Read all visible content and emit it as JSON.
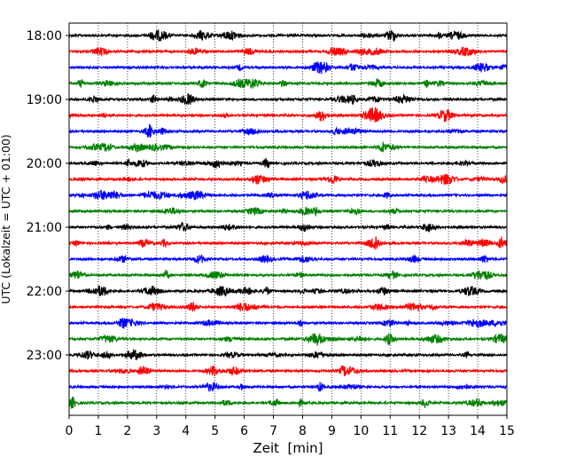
{
  "chart_data": {
    "type": "line",
    "title": "",
    "xlabel": "Zeit  [min]",
    "ylabel": "UTC (Lokalzeit = UTC + 01:00)",
    "xlim": [
      0,
      15
    ],
    "x_ticks": [
      0,
      1,
      2,
      3,
      4,
      5,
      6,
      7,
      8,
      9,
      10,
      11,
      12,
      13,
      14,
      15
    ],
    "x_tick_labels": [
      "0",
      "1",
      "2",
      "3",
      "4",
      "5",
      "6",
      "7",
      "8",
      "9",
      "10",
      "11",
      "12",
      "13",
      "14",
      "15"
    ],
    "y_tick_labels": [
      "18:00",
      "19:00",
      "20:00",
      "21:00",
      "22:00",
      "23:00"
    ],
    "y_tick_rows": [
      0,
      4,
      8,
      12,
      16,
      20
    ],
    "grid": "vertical-dotted",
    "trace_colors": [
      "#000000",
      "#ff0000",
      "#0000ff",
      "#008000"
    ],
    "traces": [
      {
        "start": "18:00",
        "color": "#000000"
      },
      {
        "start": "18:15",
        "color": "#ff0000"
      },
      {
        "start": "18:30",
        "color": "#0000ff"
      },
      {
        "start": "18:45",
        "color": "#008000"
      },
      {
        "start": "19:00",
        "color": "#000000"
      },
      {
        "start": "19:15",
        "color": "#ff0000"
      },
      {
        "start": "19:30",
        "color": "#0000ff"
      },
      {
        "start": "19:45",
        "color": "#008000"
      },
      {
        "start": "20:00",
        "color": "#000000"
      },
      {
        "start": "20:15",
        "color": "#ff0000"
      },
      {
        "start": "20:30",
        "color": "#0000ff"
      },
      {
        "start": "20:45",
        "color": "#008000"
      },
      {
        "start": "21:00",
        "color": "#000000"
      },
      {
        "start": "21:15",
        "color": "#ff0000"
      },
      {
        "start": "21:30",
        "color": "#0000ff"
      },
      {
        "start": "21:45",
        "color": "#008000"
      },
      {
        "start": "22:00",
        "color": "#000000"
      },
      {
        "start": "22:15",
        "color": "#ff0000"
      },
      {
        "start": "22:30",
        "color": "#0000ff"
      },
      {
        "start": "22:45",
        "color": "#008000"
      },
      {
        "start": "23:00",
        "color": "#000000"
      },
      {
        "start": "23:15",
        "color": "#ff0000"
      },
      {
        "start": "23:30",
        "color": "#0000ff"
      },
      {
        "start": "23:45",
        "color": "#008000"
      }
    ]
  }
}
